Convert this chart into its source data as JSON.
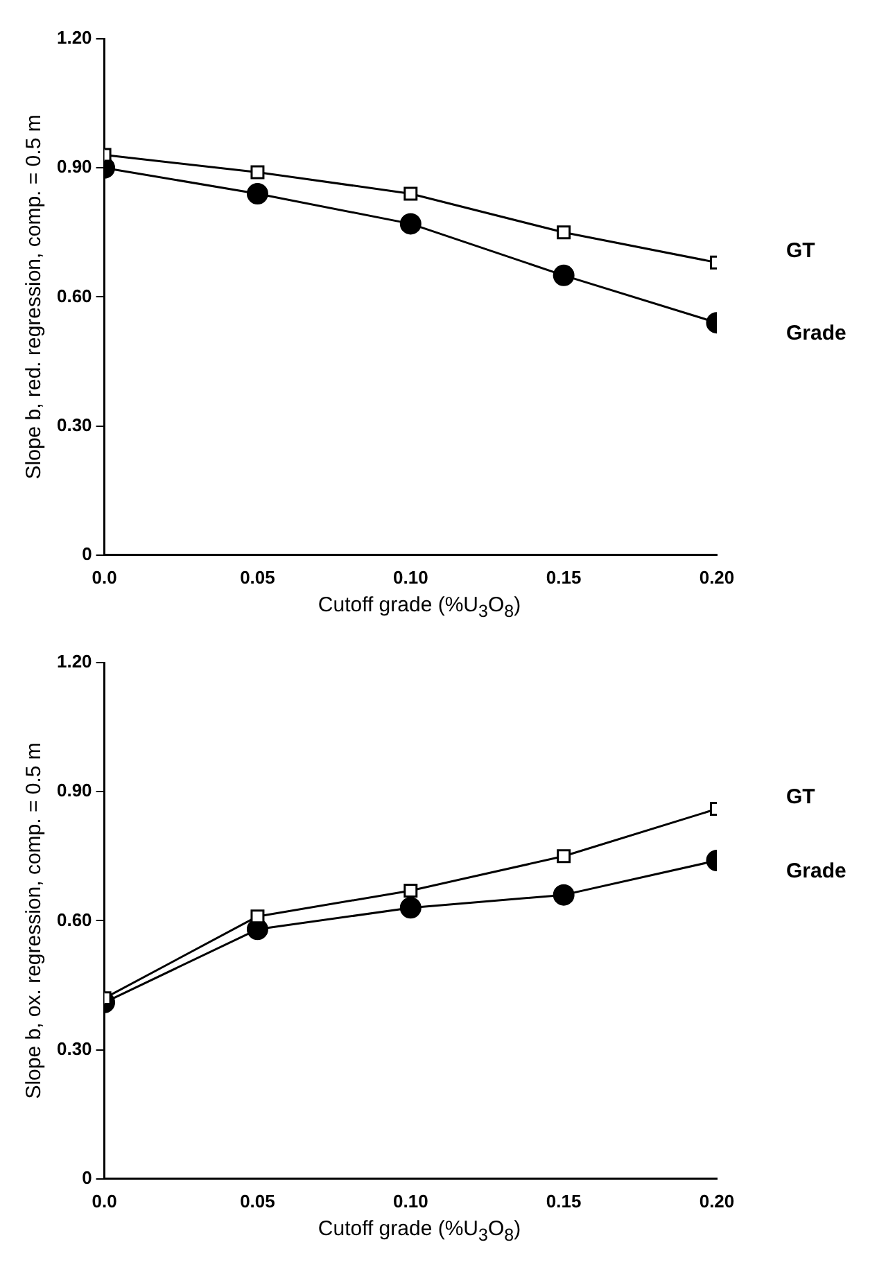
{
  "chart_data": [
    {
      "type": "line",
      "xlabel": "Cutoff grade (%U$_{3}$O$_{8}$)",
      "ylabel": "Slope b, red. regression, comp. = 0.5 m",
      "x": [
        0,
        0.05,
        0.1,
        0.15,
        0.2
      ],
      "xlim": [
        0,
        0.2
      ],
      "xticks": [
        {
          "value": 0,
          "label": "0.0"
        },
        {
          "value": 0.05,
          "label": "0.05"
        },
        {
          "value": 0.1,
          "label": "0.10"
        },
        {
          "value": 0.15,
          "label": "0.15"
        },
        {
          "value": 0.2,
          "label": "0.20"
        }
      ],
      "ylim": [
        0,
        1.2
      ],
      "yticks": [
        {
          "value": 0,
          "label": "0"
        },
        {
          "value": 0.3,
          "label": "0.30"
        },
        {
          "value": 0.6,
          "label": "0.60"
        },
        {
          "value": 0.9,
          "label": "0.90"
        },
        {
          "value": 1.2,
          "label": "1.20"
        }
      ],
      "grid": false,
      "legend": false,
      "series": [
        {
          "name": "GT",
          "color": "#000000",
          "marker": "square",
          "values": [
            0.93,
            0.89,
            0.84,
            0.75,
            0.68
          ]
        },
        {
          "name": "Grade",
          "color": "#000000",
          "marker": "circle",
          "values": [
            0.9,
            0.84,
            0.77,
            0.65,
            0.54
          ]
        }
      ]
    },
    {
      "type": "line",
      "xlabel": "Cutoff grade (%U$_{3}$O$_{8}$)",
      "ylabel": "Slope b, ox. regression, comp. = 0.5 m",
      "x": [
        0,
        0.05,
        0.1,
        0.15,
        0.2
      ],
      "xlim": [
        0,
        0.2
      ],
      "xticks": [
        {
          "value": 0,
          "label": "0.0"
        },
        {
          "value": 0.05,
          "label": "0.05"
        },
        {
          "value": 0.1,
          "label": "0.10"
        },
        {
          "value": 0.15,
          "label": "0.15"
        },
        {
          "value": 0.2,
          "label": "0.20"
        }
      ],
      "ylim": [
        0,
        1.2
      ],
      "yticks": [
        {
          "value": 0,
          "label": "0"
        },
        {
          "value": 0.3,
          "label": "0.30"
        },
        {
          "value": 0.6,
          "label": "0.60"
        },
        {
          "value": 0.9,
          "label": "0.90"
        },
        {
          "value": 1.2,
          "label": "1.20"
        }
      ],
      "grid": false,
      "legend": false,
      "series": [
        {
          "name": "GT",
          "color": "#000000",
          "marker": "square",
          "values": [
            0.42,
            0.61,
            0.67,
            0.75,
            0.86
          ]
        },
        {
          "name": "Grade",
          "color": "#000000",
          "marker": "circle",
          "values": [
            0.41,
            0.58,
            0.63,
            0.66,
            0.74
          ]
        }
      ]
    }
  ]
}
